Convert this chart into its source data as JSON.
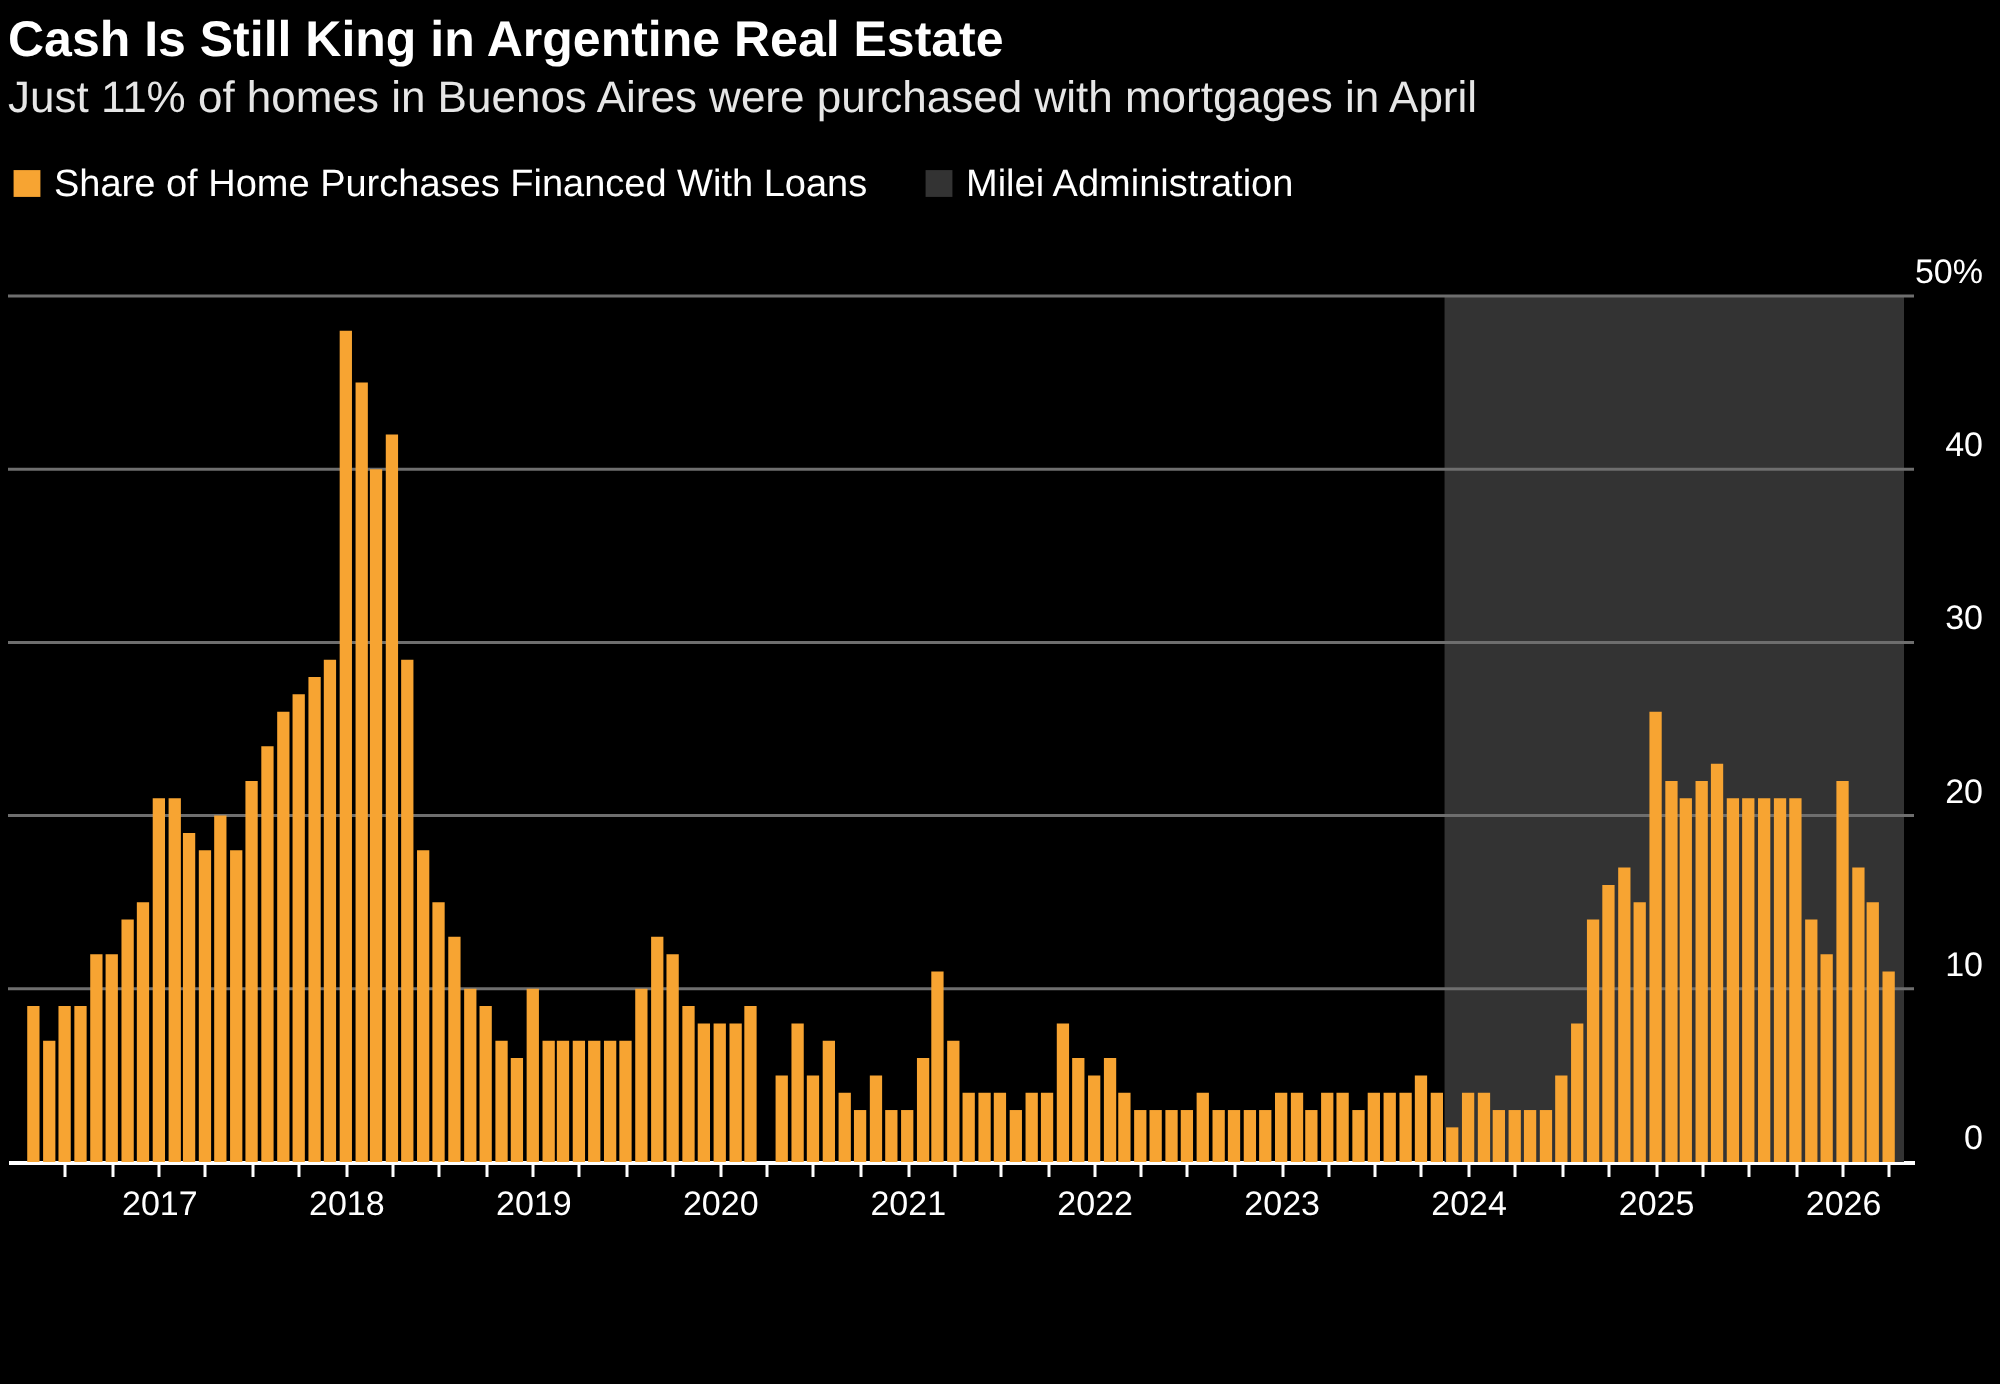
{
  "chart_data": {
    "type": "bar",
    "title": "Cash Is Still King in Argentine Real Estate",
    "subtitle": "Just 11% of homes in Buenos Aires were purchased with mortgages in April",
    "x": [
      "2016-05",
      "2016-06",
      "2016-07",
      "2016-08",
      "2016-09",
      "2016-10",
      "2016-11",
      "2016-12",
      "2017-01",
      "2017-02",
      "2017-03",
      "2017-04",
      "2017-05",
      "2017-06",
      "2017-07",
      "2017-08",
      "2017-09",
      "2017-10",
      "2017-11",
      "2017-12",
      "2018-01",
      "2018-02",
      "2018-03",
      "2018-04",
      "2018-05",
      "2018-06",
      "2018-07",
      "2018-08",
      "2018-09",
      "2018-10",
      "2018-11",
      "2018-12",
      "2019-01",
      "2019-02",
      "2019-03",
      "2019-04",
      "2019-05",
      "2019-06",
      "2019-07",
      "2019-08",
      "2019-09",
      "2019-10",
      "2019-11",
      "2019-12",
      "2020-01",
      "2020-02",
      "2020-03",
      "2020-04",
      "2020-05",
      "2020-06",
      "2020-07",
      "2020-08",
      "2020-09",
      "2020-10",
      "2020-11",
      "2020-12",
      "2021-01",
      "2021-02",
      "2021-03",
      "2021-04",
      "2021-05",
      "2021-06",
      "2021-07",
      "2021-08",
      "2021-09",
      "2021-10",
      "2021-11",
      "2021-12",
      "2022-01",
      "2022-02",
      "2022-03",
      "2022-04",
      "2022-05",
      "2022-06",
      "2022-07",
      "2022-08",
      "2022-09",
      "2022-10",
      "2022-11",
      "2022-12",
      "2023-01",
      "2023-02",
      "2023-03",
      "2023-04",
      "2023-05",
      "2023-06",
      "2023-07",
      "2023-08",
      "2023-09",
      "2023-10",
      "2023-11",
      "2023-12",
      "2024-01",
      "2024-02",
      "2024-03",
      "2024-04",
      "2024-05",
      "2024-06",
      "2024-07",
      "2024-08",
      "2024-09",
      "2024-10",
      "2024-11",
      "2024-12",
      "2025-01",
      "2025-02",
      "2025-03",
      "2025-04",
      "2025-05",
      "2025-06",
      "2025-07",
      "2025-08",
      "2025-09",
      "2025-10",
      "2025-11",
      "2025-12",
      "2026-01",
      "2026-02",
      "2026-03",
      "2026-04"
    ],
    "series": [
      {
        "name": "Share of Home Purchases Financed With Loans",
        "color": "#f7a432",
        "values": [
          9,
          7,
          9,
          9,
          12,
          12,
          14,
          15,
          21,
          21,
          19,
          18,
          20,
          18,
          22,
          24,
          26,
          27,
          28,
          29,
          48,
          45,
          40,
          42,
          29,
          18,
          15,
          13,
          10,
          9,
          7,
          6,
          10,
          7,
          7,
          7,
          7,
          7,
          7,
          10,
          13,
          12,
          9,
          8,
          8,
          8,
          9,
          null,
          5,
          8,
          5,
          7,
          4,
          3,
          5,
          3,
          3,
          6,
          11,
          7,
          4,
          4,
          4,
          3,
          4,
          4,
          8,
          6,
          5,
          6,
          4,
          3,
          3,
          3,
          3,
          4,
          3,
          3,
          3,
          3,
          4,
          4,
          3,
          4,
          4,
          3,
          4,
          4,
          4,
          5,
          4,
          2,
          4,
          4,
          3,
          3,
          3,
          3,
          5,
          8,
          14,
          16,
          17,
          15,
          26,
          22,
          21,
          22,
          23,
          21,
          21,
          21,
          21,
          21,
          14,
          12,
          22,
          17,
          15,
          11
        ]
      }
    ],
    "bands": [
      {
        "axis": "x",
        "from": "2023-11-16",
        "to": "2026-05-01",
        "label": "Milei Administration",
        "color": "#333333"
      }
    ],
    "xlim": [
      "2016-04-01",
      "2026-05-01"
    ],
    "xticks": [
      {
        "value": "2016-07",
        "label": null
      },
      {
        "value": "2016-10",
        "label": null
      },
      {
        "value": "2017-01",
        "label": "2017"
      },
      {
        "value": "2017-04",
        "label": null
      },
      {
        "value": "2017-07",
        "label": null
      },
      {
        "value": "2017-10",
        "label": null
      },
      {
        "value": "2018-01",
        "label": "2018"
      },
      {
        "value": "2018-04",
        "label": null
      },
      {
        "value": "2018-07",
        "label": null
      },
      {
        "value": "2018-10",
        "label": null
      },
      {
        "value": "2019-01",
        "label": "2019"
      },
      {
        "value": "2019-04",
        "label": null
      },
      {
        "value": "2019-07",
        "label": null
      },
      {
        "value": "2019-10",
        "label": null
      },
      {
        "value": "2020-01",
        "label": "2020"
      },
      {
        "value": "2020-04",
        "label": null
      },
      {
        "value": "2020-07",
        "label": null
      },
      {
        "value": "2020-10",
        "label": null
      },
      {
        "value": "2021-01",
        "label": "2021"
      },
      {
        "value": "2021-04",
        "label": null
      },
      {
        "value": "2021-07",
        "label": null
      },
      {
        "value": "2021-10",
        "label": null
      },
      {
        "value": "2022-01",
        "label": "2022"
      },
      {
        "value": "2022-04",
        "label": null
      },
      {
        "value": "2022-07",
        "label": null
      },
      {
        "value": "2022-10",
        "label": null
      },
      {
        "value": "2023-01",
        "label": "2023"
      },
      {
        "value": "2023-04",
        "label": null
      },
      {
        "value": "2023-07",
        "label": null
      },
      {
        "value": "2023-10",
        "label": null
      },
      {
        "value": "2024-01",
        "label": "2024"
      },
      {
        "value": "2024-04",
        "label": null
      },
      {
        "value": "2024-07",
        "label": null
      },
      {
        "value": "2024-10",
        "label": null
      },
      {
        "value": "2025-01",
        "label": "2025"
      },
      {
        "value": "2025-04",
        "label": null
      },
      {
        "value": "2025-07",
        "label": null
      },
      {
        "value": "2025-10",
        "label": null
      },
      {
        "value": "2026-01",
        "label": "2026"
      },
      {
        "value": "2026-04",
        "label": null
      }
    ],
    "ylim": [
      0,
      50
    ],
    "yticks": [
      0,
      10,
      20,
      30,
      40,
      {
        "value": 50,
        "label": "50%"
      }
    ],
    "grid": "y",
    "legend": "top left"
  }
}
